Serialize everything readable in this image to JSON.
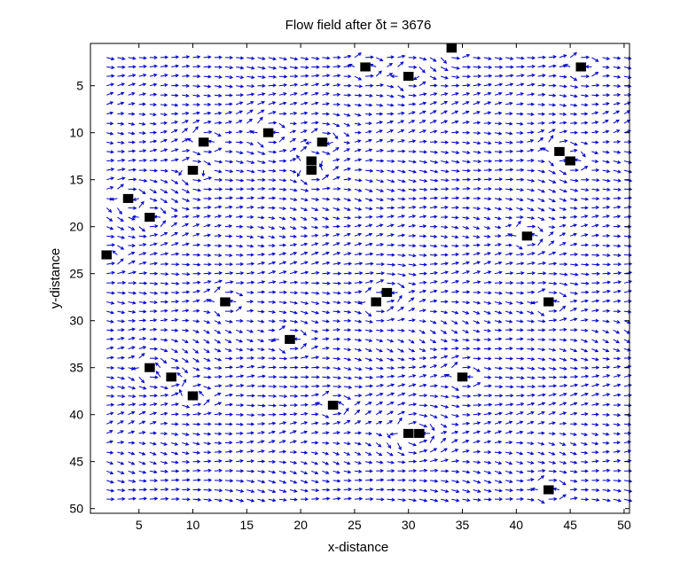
{
  "chart_data": {
    "type": "quiver",
    "title": "Flow field after  δt = 3676",
    "xlabel": "x-distance",
    "ylabel": "y-distance",
    "xlim": [
      0.5,
      50.5
    ],
    "ylim": [
      0.5,
      50.5
    ],
    "y_axis_reversed": true,
    "grid": false,
    "x_ticks": [
      5,
      10,
      15,
      20,
      25,
      30,
      35,
      40,
      45,
      50
    ],
    "y_ticks": [
      5,
      10,
      15,
      20,
      25,
      30,
      35,
      40,
      45,
      50
    ],
    "arrow_color": "#0000cc",
    "obstacle_color": "#000000",
    "grid_points": {
      "x_range": [
        2,
        50
      ],
      "y_range": [
        2,
        49
      ],
      "step": 1
    },
    "obstacles": [
      {
        "x": 34,
        "y": 1
      },
      {
        "x": 26,
        "y": 3
      },
      {
        "x": 46,
        "y": 3
      },
      {
        "x": 30,
        "y": 4
      },
      {
        "x": 17,
        "y": 10
      },
      {
        "x": 11,
        "y": 11
      },
      {
        "x": 22,
        "y": 11
      },
      {
        "x": 44,
        "y": 12
      },
      {
        "x": 45,
        "y": 13
      },
      {
        "x": 21,
        "y": 13
      },
      {
        "x": 21,
        "y": 14
      },
      {
        "x": 10,
        "y": 14
      },
      {
        "x": 4,
        "y": 17
      },
      {
        "x": 6,
        "y": 19
      },
      {
        "x": 41,
        "y": 21
      },
      {
        "x": 2,
        "y": 23
      },
      {
        "x": 28,
        "y": 27
      },
      {
        "x": 13,
        "y": 28
      },
      {
        "x": 27,
        "y": 28
      },
      {
        "x": 43,
        "y": 28
      },
      {
        "x": 19,
        "y": 32
      },
      {
        "x": 6,
        "y": 35
      },
      {
        "x": 8,
        "y": 36
      },
      {
        "x": 35,
        "y": 36
      },
      {
        "x": 10,
        "y": 38
      },
      {
        "x": 23,
        "y": 39
      },
      {
        "x": 30,
        "y": 42
      },
      {
        "x": 31,
        "y": 42
      },
      {
        "x": 43,
        "y": 48
      }
    ]
  }
}
